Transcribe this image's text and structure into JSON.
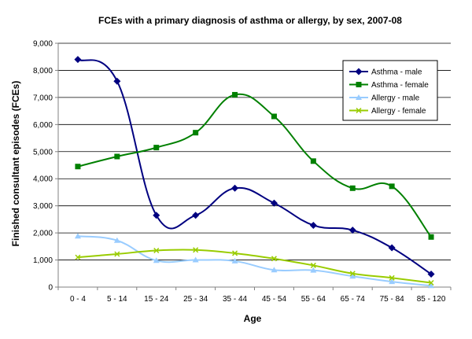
{
  "chart_data": {
    "type": "line",
    "title": "FCEs with a primary diagnosis of asthma or allergy, by sex, 2007-08",
    "xlabel": "Age",
    "ylabel": "Finished consultant episodes (FCEs)",
    "categories": [
      "0 - 4",
      "5 - 14",
      "15 - 24",
      "25 - 34",
      "35 - 44",
      "45 - 54",
      "55 - 64",
      "65 - 74",
      "75 - 84",
      "85 - 120"
    ],
    "ylim": [
      0,
      9000
    ],
    "yticks": [
      0,
      1000,
      2000,
      3000,
      4000,
      5000,
      6000,
      7000,
      8000,
      9000
    ],
    "ytick_labels": [
      "0",
      "1,000",
      "2,000",
      "3,000",
      "4,000",
      "5,000",
      "6,000",
      "7,000",
      "8,000",
      "9,000"
    ],
    "grid": true,
    "legend_position": "top-right",
    "series": [
      {
        "name": "Asthma - male",
        "color": "#000080",
        "marker": "diamond",
        "values": [
          8400,
          7600,
          2650,
          2650,
          3650,
          3100,
          2280,
          2100,
          1450,
          480
        ]
      },
      {
        "name": "Asthma - female",
        "color": "#008000",
        "marker": "square",
        "values": [
          4450,
          4820,
          5150,
          5700,
          7100,
          6300,
          4650,
          3650,
          3720,
          1850
        ]
      },
      {
        "name": "Allergy - male",
        "color": "#99CCFF",
        "marker": "triangle",
        "values": [
          1880,
          1720,
          980,
          1000,
          960,
          630,
          620,
          400,
          200,
          50
        ]
      },
      {
        "name": "Allergy - female",
        "color": "#99CC00",
        "marker": "x",
        "values": [
          1100,
          1220,
          1350,
          1370,
          1250,
          1050,
          800,
          500,
          340,
          160
        ]
      }
    ]
  }
}
